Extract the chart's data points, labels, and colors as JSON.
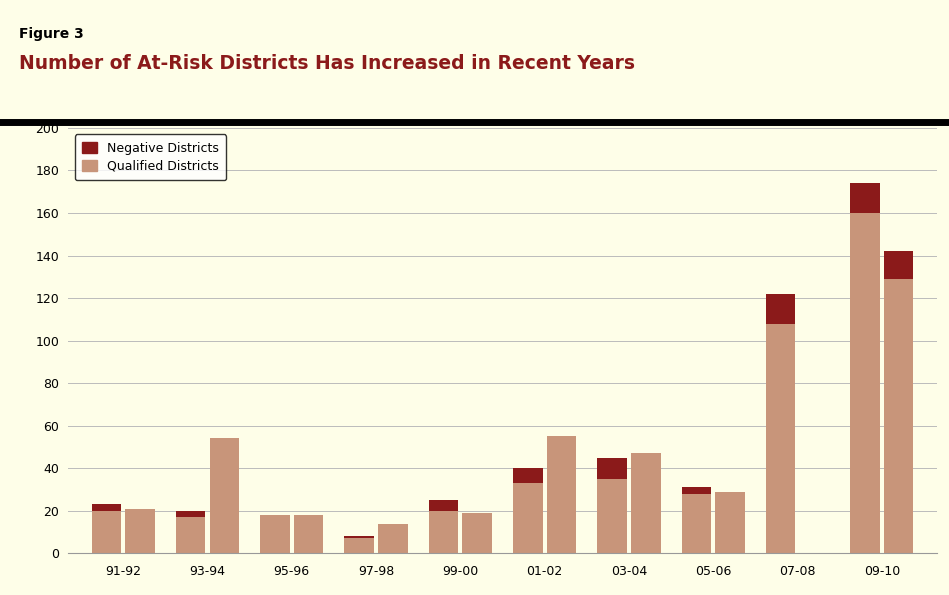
{
  "figure_label": "Figure 3",
  "title": "Number of At-Risk Districts Has Increased in Recent Years",
  "title_color": "#8B1A1A",
  "figure_label_color": "#000000",
  "bg_color": "#FEFEE8",
  "categories": [
    "91-92",
    "93-94",
    "95-96",
    "97-98",
    "99-00",
    "01-02",
    "03-04",
    "05-06",
    "07-08",
    "09-10"
  ],
  "bar1_qualified": [
    20,
    17,
    18,
    7,
    20,
    33,
    35,
    28,
    108,
    160
  ],
  "bar1_negative": [
    3,
    3,
    0,
    1,
    5,
    7,
    10,
    3,
    14,
    14
  ],
  "bar2_qualified": [
    21,
    54,
    18,
    14,
    19,
    55,
    47,
    29,
    0,
    129
  ],
  "bar2_negative": [
    0,
    0,
    0,
    0,
    0,
    0,
    0,
    0,
    0,
    13
  ],
  "qualified_color": "#C8957A",
  "negative_color": "#8B1A1A",
  "ylim": [
    0,
    200
  ],
  "yticks": [
    0,
    20,
    40,
    60,
    80,
    100,
    120,
    140,
    160,
    180,
    200
  ],
  "legend_labels": [
    "Negative Districts",
    "Qualified Districts"
  ],
  "grid_color": "#BBBBBB",
  "separator_color": "#000000"
}
